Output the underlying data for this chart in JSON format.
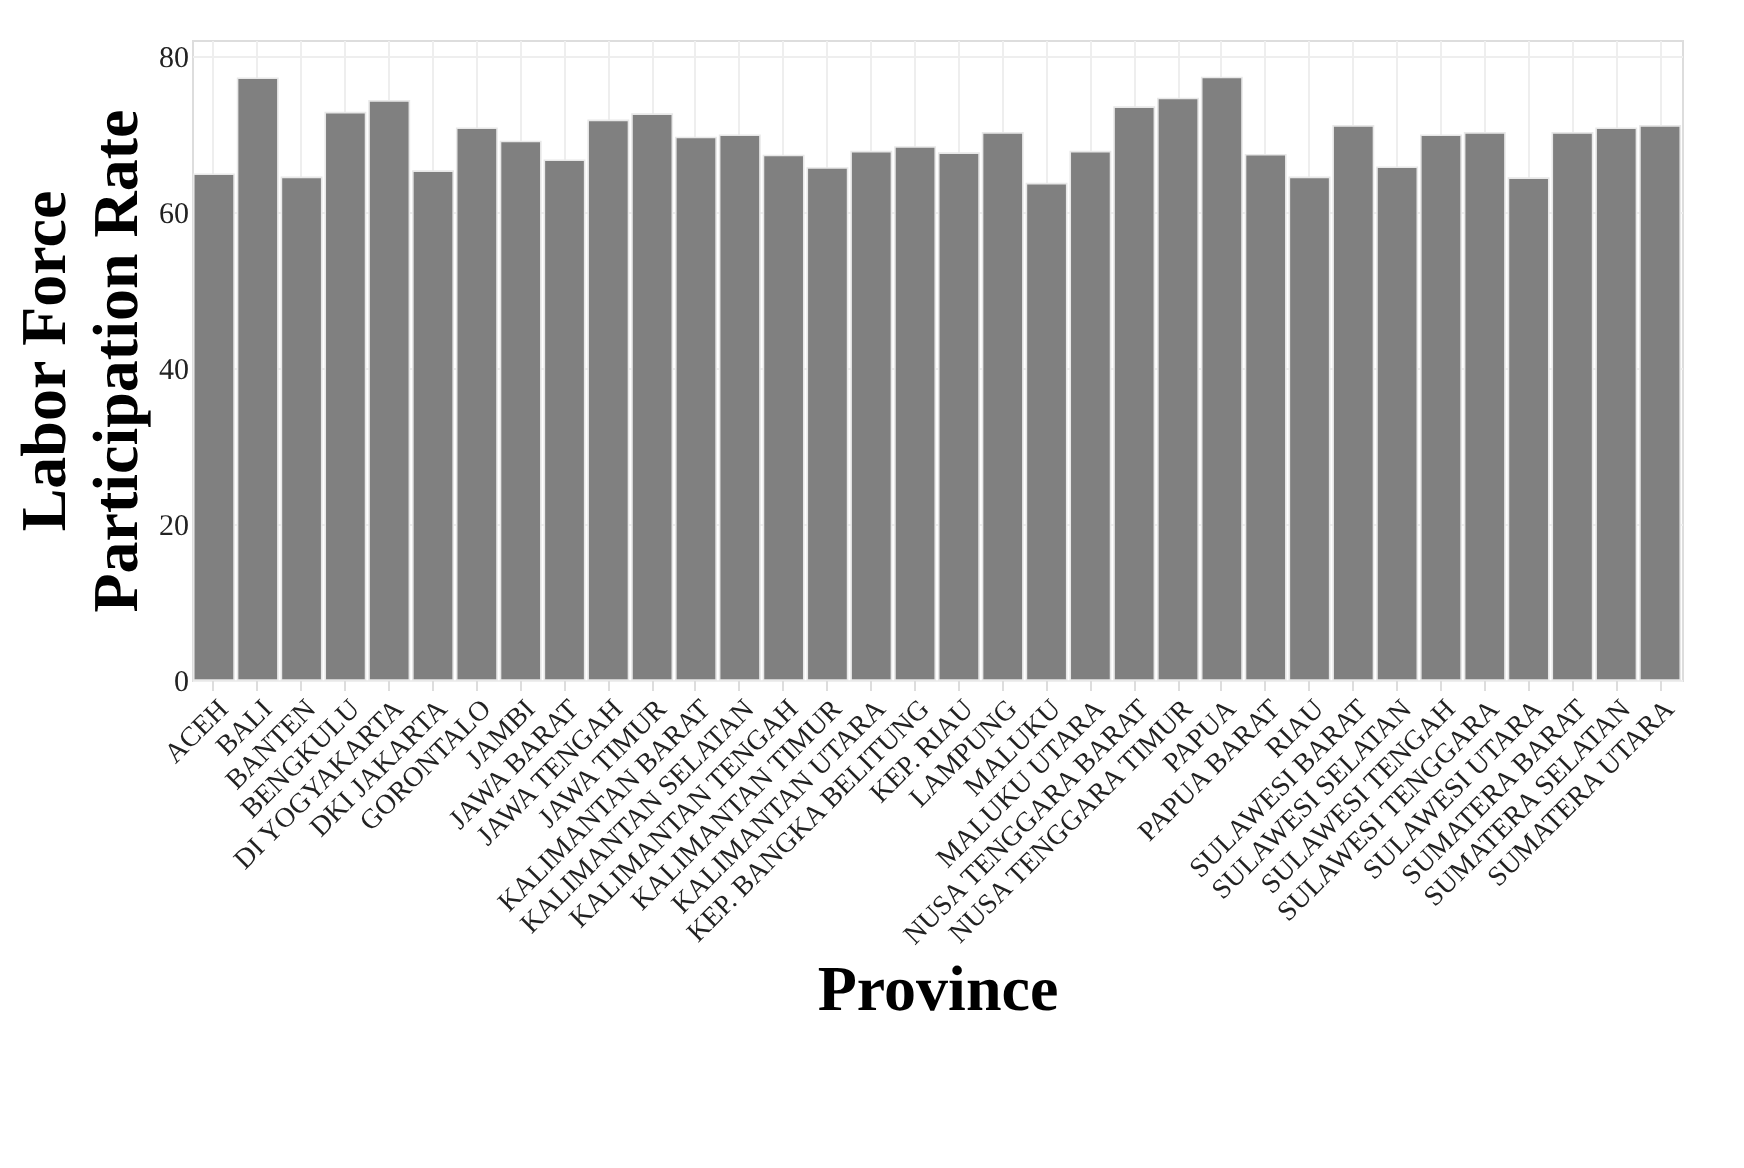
{
  "chart_data": {
    "type": "bar",
    "xlabel": "Province",
    "ylabel": "Labor Force Participation Rate",
    "categories": [
      "ACEH",
      "BALI",
      "BANTEN",
      "BENGKULU",
      "DI YOGYAKARTA",
      "DKI JAKARTA",
      "GORONTALO",
      "JAMBI",
      "JAWA BARAT",
      "JAWA TENGAH",
      "JAWA TIMUR",
      "KALIMANTAN BARAT",
      "KALIMANTAN SELATAN",
      "KALIMANTAN TENGAH",
      "KALIMANTAN TIMUR",
      "KALIMANTAN UTARA",
      "KEP. BANGKA BELITUNG",
      "KEP. RIAU",
      "LAMPUNG",
      "MALUKU",
      "MALUKU UTARA",
      "NUSA TENGGARA BARAT",
      "NUSA TENGGARA TIMUR",
      "PAPUA",
      "PAPUA BARAT",
      "RIAU",
      "SULAWESI BARAT",
      "SULAWESI SELATAN",
      "SULAWESI TENGAH",
      "SULAWESI TENGGARA",
      "SULAWESI UTARA",
      "SUMATERA BARAT",
      "SUMATERA SELATAN",
      "SUMATERA UTARA"
    ],
    "values": [
      64.8,
      77.1,
      64.4,
      72.7,
      74.2,
      65.2,
      70.7,
      69.0,
      66.6,
      71.7,
      72.5,
      69.5,
      69.8,
      67.2,
      65.6,
      67.7,
      68.3,
      67.5,
      70.1,
      63.6,
      67.7,
      73.4,
      74.5,
      77.2,
      67.3,
      64.4,
      71.0,
      65.7,
      69.8,
      70.1,
      64.3,
      70.1,
      70.7,
      71.0
    ],
    "color": "#808080",
    "ylim": [
      0,
      82
    ],
    "yticks": [
      0,
      20,
      40,
      60,
      80
    ],
    "grid": true
  }
}
